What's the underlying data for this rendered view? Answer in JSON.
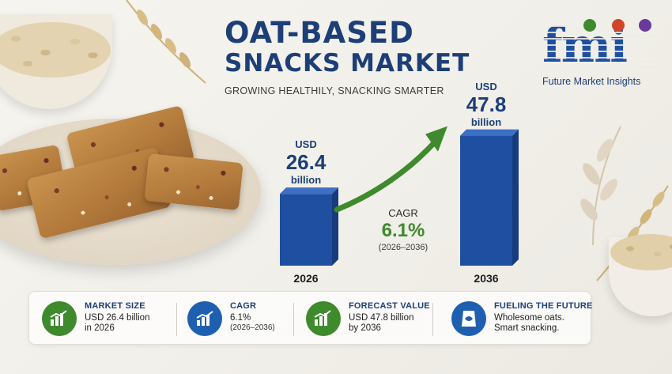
{
  "title": {
    "line1": "OAT-BASED",
    "line2": "SNACKS MARKET",
    "subtitle": "GROWING HEALTHILY, SNACKING SMARTER"
  },
  "logo": {
    "wordmark": "fmi",
    "caption": "Future Market Insights",
    "dot_colors": [
      "#3e8a2c",
      "#d2442a",
      "#6a3a9a"
    ]
  },
  "colors": {
    "brand_blue": "#1d3f78",
    "bar_blue": "#1f4fa0",
    "accent_green": "#3e8a2c"
  },
  "chart_data": {
    "type": "bar",
    "categories": [
      "2026",
      "2036"
    ],
    "values": [
      26.4,
      47.8
    ],
    "currency_label": "USD",
    "unit_label": "billion",
    "value_labels": [
      "26.4",
      "47.8"
    ],
    "ylim": [
      0,
      50
    ],
    "grid": false,
    "annotation": {
      "label": "CAGR",
      "value": "6.1%",
      "range": "(2026–2036)"
    }
  },
  "info_strip": [
    {
      "icon": "bar-chart-icon",
      "title": "MARKET SIZE",
      "line1": "USD 26.4 billion",
      "line2": "in 2026",
      "color": "#3e8a2c"
    },
    {
      "icon": "growth-chart-icon",
      "title": "CAGR",
      "line1": "6.1%",
      "line2": "(2026–2036)",
      "color": "#1f5fb0"
    },
    {
      "icon": "forecast-chart-icon",
      "title": "FORECAST VALUE",
      "line1": "USD 47.8 billion",
      "line2": "by 2036",
      "color": "#3e8a2c"
    },
    {
      "icon": "snack-bag-icon",
      "title": "FUELING THE FUTURE",
      "line1": "Wholesome oats.",
      "line2": "Smart snacking.",
      "color": "#1f5fb0"
    }
  ]
}
